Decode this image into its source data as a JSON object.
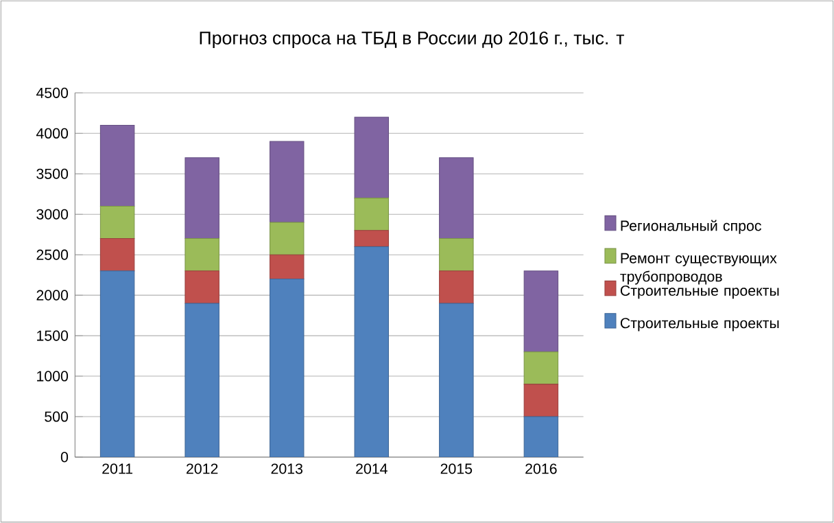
{
  "chart_data": {
    "type": "bar",
    "stacked": true,
    "title": "Прогноз спроса на ТБД в России до 2016 г., тыс. т",
    "categories": [
      "2011",
      "2012",
      "2013",
      "2014",
      "2015",
      "2016"
    ],
    "series": [
      {
        "name": "Строительные проекты",
        "color": "#4f81bd",
        "values": [
          2300,
          1900,
          2200,
          2600,
          1900,
          500
        ]
      },
      {
        "name": "Строительные проекты",
        "color": "#c0504d",
        "values": [
          400,
          400,
          300,
          200,
          400,
          400
        ]
      },
      {
        "name": "Ремонт существующих трубопроводов",
        "color": "#9bbb59",
        "values": [
          400,
          400,
          400,
          400,
          400,
          400
        ]
      },
      {
        "name": "Региональный спрос",
        "color": "#8064a2",
        "values": [
          1000,
          1000,
          1000,
          1000,
          1000,
          1000
        ]
      }
    ],
    "ylim": [
      0,
      4500
    ],
    "yticks": [
      0,
      500,
      1000,
      1500,
      2000,
      2500,
      3000,
      3500,
      4000,
      4500
    ],
    "grid": "y",
    "legend": "right"
  }
}
